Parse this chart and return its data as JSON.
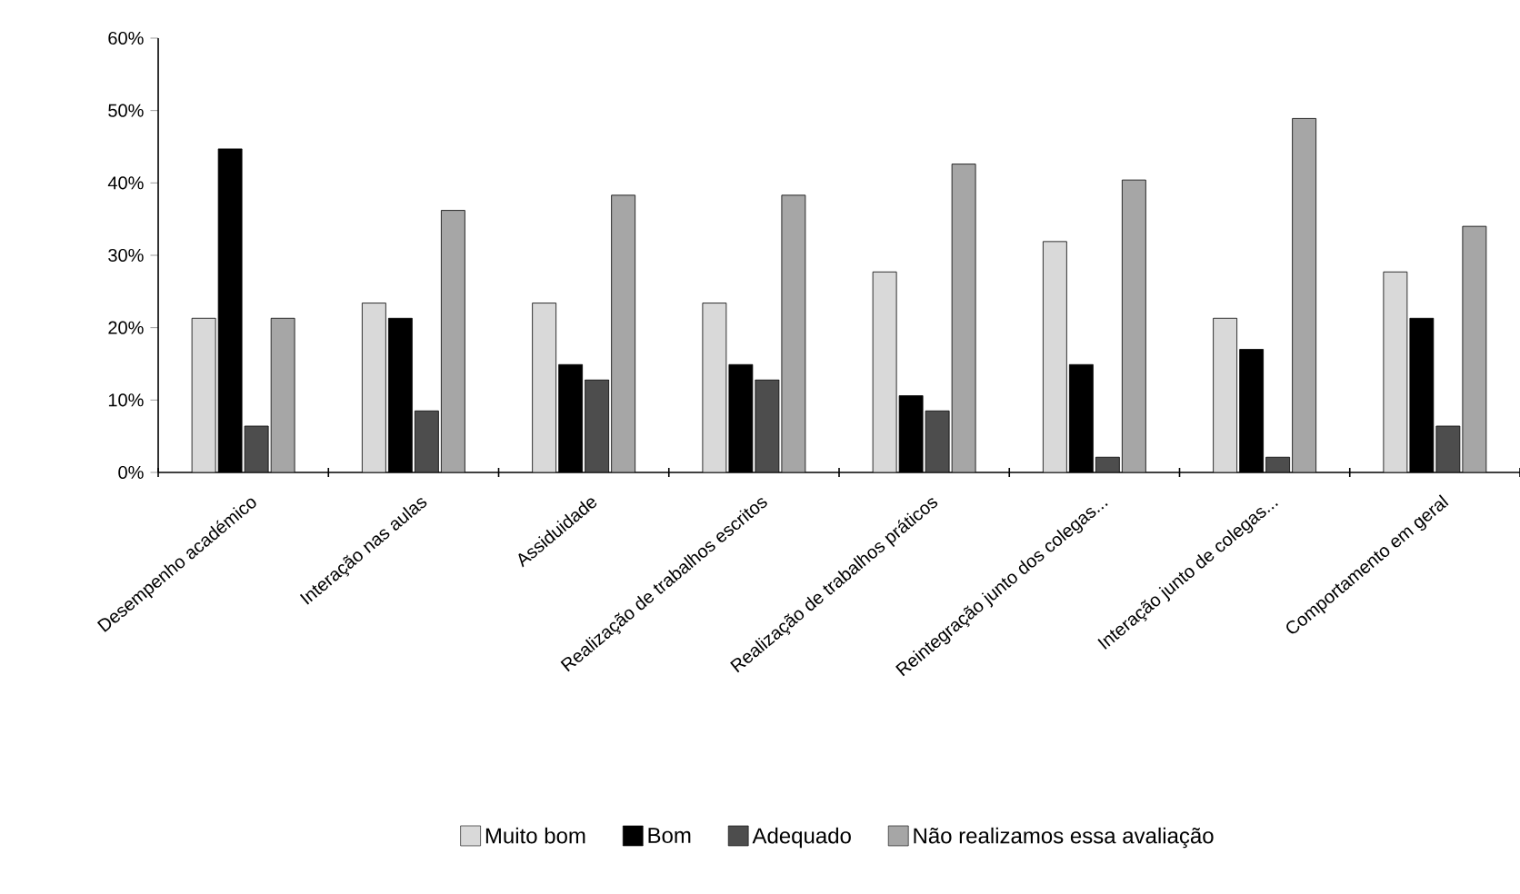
{
  "chart_data": {
    "type": "bar",
    "categories": [
      "Desempenho académico",
      "Interação nas aulas",
      "Assiduidade",
      "Realização de trabalhos escritos",
      "Realização de trabalhos práticos",
      "Reintegração junto dos colegas...",
      "Interação junto de colegas...",
      "Comportamento em geral"
    ],
    "series": [
      {
        "name": "Muito bom",
        "color": "#d9d9d9",
        "values": [
          21.3,
          23.4,
          23.4,
          23.4,
          27.7,
          31.9,
          21.3,
          27.7
        ]
      },
      {
        "name": "Bom",
        "color": "#000000",
        "values": [
          44.7,
          21.3,
          14.9,
          14.9,
          10.6,
          14.9,
          17.0,
          21.3
        ]
      },
      {
        "name": "Adequado",
        "color": "#4d4d4d",
        "values": [
          6.4,
          8.5,
          12.8,
          12.8,
          8.5,
          2.1,
          2.1,
          6.4
        ]
      },
      {
        "name": "Não realizamos essa avaliação",
        "color": "#a6a6a6",
        "values": [
          21.3,
          36.2,
          38.3,
          38.3,
          42.6,
          40.4,
          48.9,
          34.0
        ]
      }
    ],
    "ylim": [
      0,
      60
    ],
    "yticks": [
      {
        "value": 0,
        "label": "0%"
      },
      {
        "value": 10,
        "label": "10%"
      },
      {
        "value": 20,
        "label": "20%"
      },
      {
        "value": 30,
        "label": "30%"
      },
      {
        "value": 40,
        "label": "40%"
      },
      {
        "value": 50,
        "label": "50%"
      },
      {
        "value": 60,
        "label": "60%"
      }
    ],
    "grid": false,
    "legend": "bottom"
  }
}
